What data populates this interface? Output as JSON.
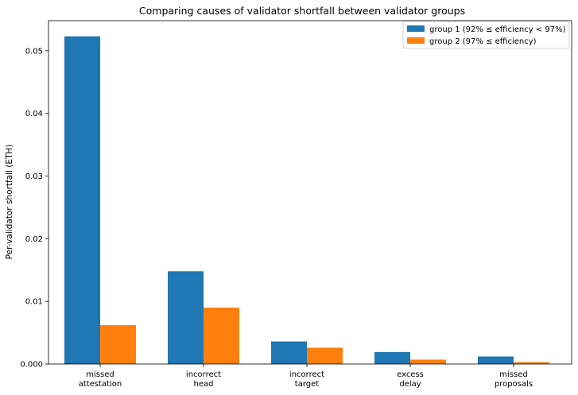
{
  "chart_data": {
    "type": "bar",
    "title": "Comparing causes of validator shortfall between validator groups",
    "xlabel": "",
    "ylabel": "Per-validator shortfall (ETH)",
    "ylim": [
      0,
      0.0548
    ],
    "yticks": [
      0.0,
      0.01,
      0.02,
      0.03,
      0.04,
      0.05
    ],
    "ytick_labels": [
      "0.000",
      "0.01",
      "0.02",
      "0.03",
      "0.04",
      "0.05"
    ],
    "categories": [
      [
        "missed",
        "attestation"
      ],
      [
        "incorrect",
        "head"
      ],
      [
        "incorrect",
        "target"
      ],
      [
        "excess",
        "delay"
      ],
      [
        "missed",
        "proposals"
      ]
    ],
    "series": [
      {
        "name": "group 1 (92% ≤ efficiency < 97%)",
        "color": "#1f77b4",
        "values": [
          0.0523,
          0.0148,
          0.0036,
          0.0019,
          0.0012
        ]
      },
      {
        "name": "group 2 (97% ≤ efficiency)",
        "color": "#ff7f0e",
        "values": [
          0.0062,
          0.009,
          0.0026,
          0.0007,
          0.0003
        ]
      }
    ],
    "legend_position": "top-right",
    "grid": false
  }
}
